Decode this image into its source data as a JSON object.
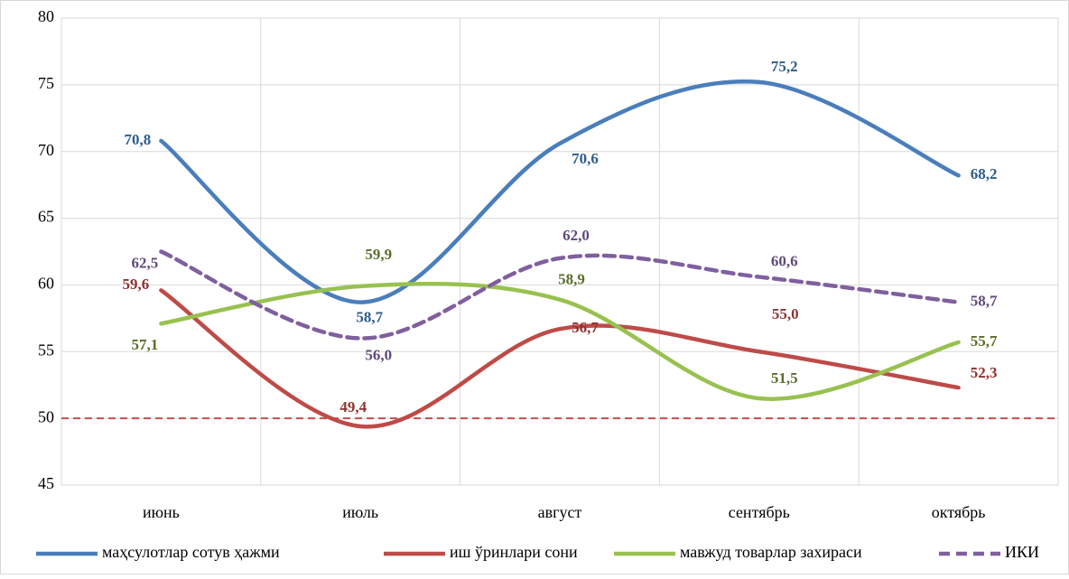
{
  "chart_data": {
    "type": "line",
    "categories": [
      "июнь",
      "июль",
      "август",
      "сентябрь",
      "октябрь"
    ],
    "series": [
      {
        "name": "маҳсулотлар сотув ҳажми",
        "color": "#4a7ebb",
        "label_color": "#2e5d8e",
        "dashed": false,
        "values": [
          70.8,
          58.7,
          70.6,
          75.2,
          68.2
        ],
        "value_labels": [
          "70,8",
          "58,7",
          "70,6",
          "75,2",
          "68,2"
        ]
      },
      {
        "name": "иш ўринлари сони",
        "color": "#be4b48",
        "label_color": "#8c3330",
        "dashed": false,
        "values": [
          59.6,
          49.4,
          56.7,
          55.0,
          52.3
        ],
        "value_labels": [
          "59,6",
          "49,4",
          "56,7",
          "55,0",
          "52,3"
        ]
      },
      {
        "name": "мавжуд товарлар захираси",
        "color": "#98c150",
        "label_color": "#5a6e2a",
        "dashed": false,
        "values": [
          57.1,
          59.9,
          58.9,
          51.5,
          55.7
        ],
        "value_labels": [
          "57,1",
          "59,9",
          "58,9",
          "51,5",
          "55,7"
        ]
      },
      {
        "name": "ИКИ",
        "color": "#7f5f9f",
        "label_color": "#604a7b",
        "dashed": true,
        "values": [
          62.5,
          56.0,
          62.0,
          60.6,
          58.7
        ],
        "value_labels": [
          "62,5",
          "56,0",
          "62,0",
          "60,6",
          "58,7"
        ]
      }
    ],
    "reference_line": {
      "value": 50,
      "color": "#c0504d"
    },
    "ylim": [
      45,
      80
    ],
    "yticks": [
      45,
      50,
      55,
      60,
      65,
      70,
      75,
      80
    ],
    "grid": true,
    "legend": "bottom",
    "smooth": true
  }
}
